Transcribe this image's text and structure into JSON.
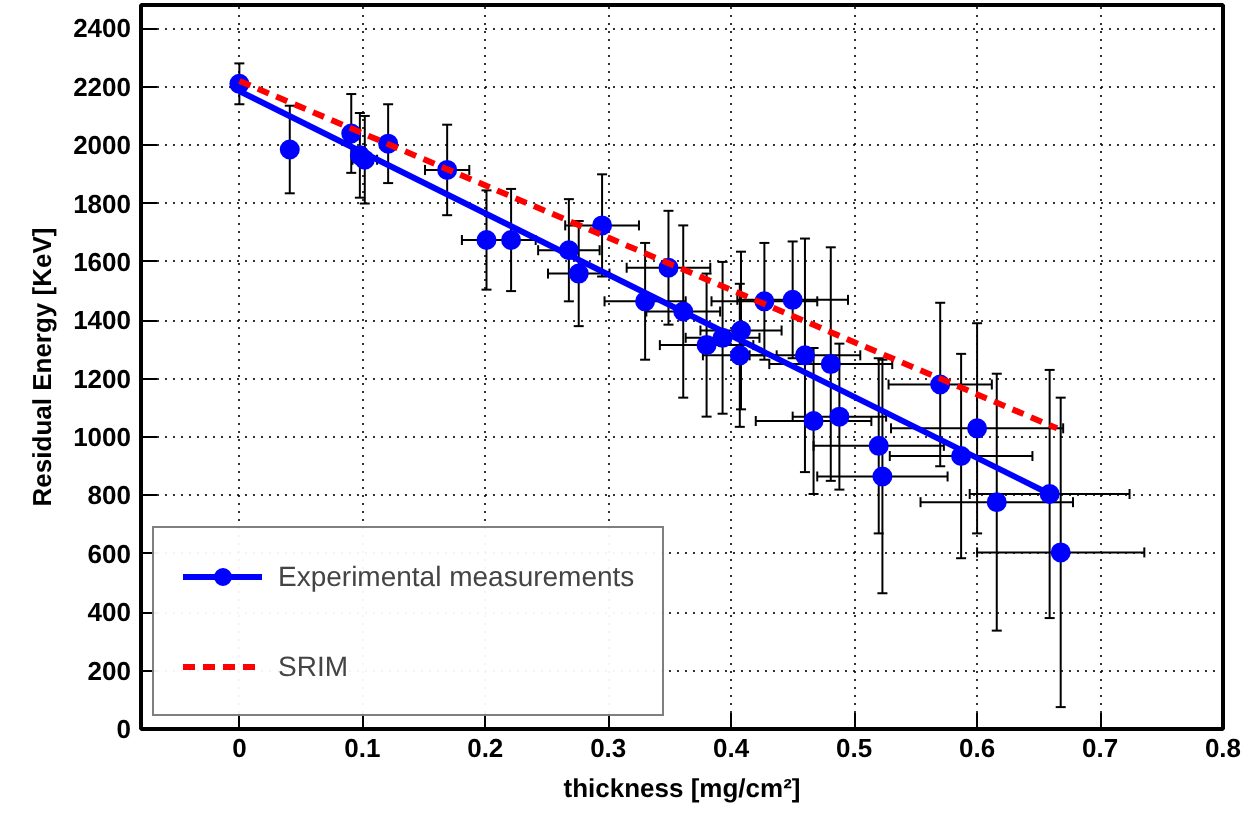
{
  "chart_data": {
    "type": "scatter",
    "xlabel": "thickness [mg/cm²]",
    "ylabel": "Residual Energy [KeV]",
    "xlim": [
      -0.08,
      0.8
    ],
    "ylim": [
      0,
      2480
    ],
    "xticks": [
      0,
      0.1,
      0.2,
      0.3,
      0.4,
      0.5,
      0.6,
      0.7,
      0.8
    ],
    "yticks": [
      0,
      200,
      400,
      600,
      800,
      1000,
      1200,
      1400,
      1600,
      1800,
      2000,
      2200,
      2400
    ],
    "grid": true,
    "legend": "bottom left",
    "series": [
      {
        "name": "Experimental measurements",
        "marker": "circle",
        "color": "#0000ff",
        "x": [
          0,
          0.041,
          0.091,
          0.098,
          0.102,
          0.121,
          0.169,
          0.201,
          0.221,
          0.268,
          0.276,
          0.295,
          0.33,
          0.349,
          0.361,
          0.38,
          0.393,
          0.408,
          0.407,
          0.427,
          0.45,
          0.46,
          0.481,
          0.467,
          0.488,
          0.52,
          0.523,
          0.57,
          0.6,
          0.587,
          0.616,
          0.659,
          0.668
        ],
        "values": [
          2210,
          1985,
          2040,
          1965,
          1950,
          2005,
          1915,
          1675,
          1675,
          1640,
          1560,
          1725,
          1465,
          1580,
          1430,
          1315,
          1340,
          1365,
          1280,
          1465,
          1470,
          1280,
          1250,
          1055,
          1070,
          970,
          865,
          1180,
          1030,
          935,
          777,
          805,
          605
        ],
        "errors": [
          70,
          150,
          135,
          145,
          150,
          135,
          155,
          170,
          175,
          175,
          180,
          175,
          200,
          195,
          295,
          245,
          260,
          270,
          245,
          200,
          200,
          400,
          400,
          250,
          250,
          300,
          400,
          280,
          360,
          350,
          440,
          425,
          530
        ],
        "xerrors": [
          null,
          null,
          null,
          null,
          0.01,
          null,
          0.018,
          0.02,
          0.02,
          0.025,
          0.025,
          0.03,
          0.033,
          0.034,
          0.03,
          0.038,
          0.03,
          0.033,
          0.03,
          0.043,
          0.045,
          0.045,
          0.05,
          0.047,
          0.038,
          0.053,
          0.053,
          0.042,
          0.07,
          0.058,
          0.062,
          0.065,
          0.068
        ]
      },
      {
        "type": "line",
        "color": "#0000ff",
        "line_style": "solid",
        "x": [
          0,
          0.659
        ],
        "values": [
          2185,
          805
        ]
      },
      {
        "name": "SRIM",
        "type": "line",
        "color": "#ff0000",
        "line_style": "dashed",
        "x": [
          0,
          0.665
        ],
        "values": [
          2220,
          1030
        ]
      }
    ]
  }
}
